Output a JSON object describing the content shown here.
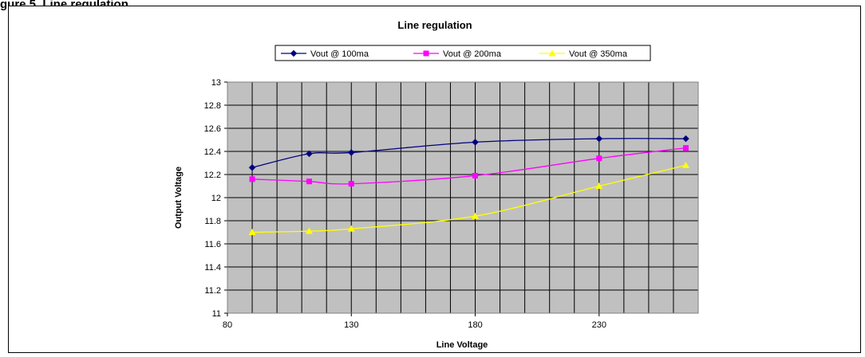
{
  "page": {
    "caption": "gure 5. Line regulation"
  },
  "chart_data": {
    "type": "line",
    "title": "Line regulation",
    "xlabel": "Line Voltage",
    "ylabel": "Output Voltage",
    "xlim": [
      80,
      270
    ],
    "ylim": [
      11,
      13
    ],
    "xticks": [
      80,
      130,
      180,
      230
    ],
    "yticks": [
      11,
      11.2,
      11.4,
      11.6,
      11.8,
      12,
      12.2,
      12.4,
      12.6,
      12.8,
      13
    ],
    "x_gridlines": [
      80,
      90,
      100,
      110,
      120,
      130,
      140,
      150,
      160,
      170,
      180,
      190,
      200,
      210,
      220,
      230,
      240,
      250,
      260,
      270
    ],
    "grid": true,
    "plot_background": "#C0C0C0",
    "legend_position": "top",
    "series": [
      {
        "name": "Vout @ 100ma",
        "color": "#000080",
        "marker": "diamond",
        "x": [
          90,
          113,
          130,
          180,
          230,
          265
        ],
        "y": [
          12.26,
          12.38,
          12.39,
          12.48,
          12.51,
          12.51
        ]
      },
      {
        "name": "Vout @ 200ma",
        "color": "#FF00FF",
        "marker": "square",
        "x": [
          90,
          113,
          130,
          180,
          230,
          265
        ],
        "y": [
          12.16,
          12.14,
          12.12,
          12.19,
          12.34,
          12.43
        ]
      },
      {
        "name": "Vout @ 350ma",
        "color": "#FFFF00",
        "marker": "triangle",
        "x": [
          90,
          113,
          130,
          180,
          230,
          265
        ],
        "y": [
          11.7,
          11.71,
          11.73,
          11.84,
          12.1,
          12.28
        ]
      }
    ]
  }
}
